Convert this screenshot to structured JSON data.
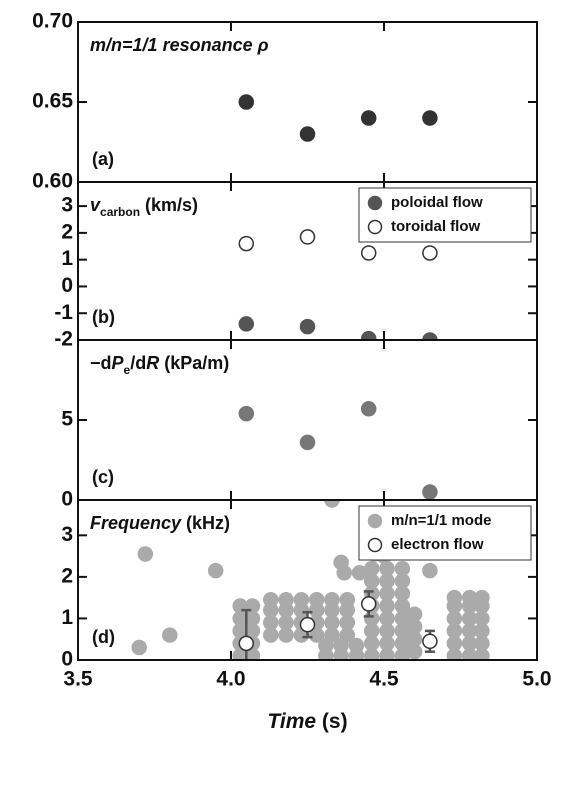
{
  "chart_data": [
    {
      "type": "scatter",
      "title": [
        {
          "text": "m",
          "italic": true
        },
        {
          "text": "/",
          "italic": true
        },
        {
          "text": "n",
          "italic": true
        },
        {
          "text": "=1/1 resonance ρ",
          "italic": true
        }
      ],
      "panel_label": "(a)",
      "xlim": [
        3.5,
        5.0
      ],
      "xticks": [
        3.5,
        4,
        4.5,
        5
      ],
      "ylim": [
        0.6,
        0.7
      ],
      "yticks": [
        {
          "value": 0.6,
          "label": "0.60"
        },
        {
          "value": 0.65,
          "label": "0.65"
        },
        {
          "value": 0.7,
          "label": "0.70"
        }
      ],
      "series": [
        {
          "color": "#333333",
          "edgecolor": "#333333",
          "x": [
            4.05,
            4.25,
            4.45,
            4.65
          ],
          "values": [
            0.65,
            0.63,
            0.64,
            0.64
          ]
        }
      ]
    },
    {
      "type": "scatter",
      "title": [
        {
          "text": "v",
          "italic": true
        },
        {
          "text": "carbon",
          "sub": true
        },
        {
          "text": " (km/s)"
        }
      ],
      "panel_label": "(b)",
      "xlim": [
        3.5,
        5.0
      ],
      "xticks": [
        3.5,
        4,
        4.5,
        5
      ],
      "ylim": [
        -2,
        3.9
      ],
      "yticks": [
        -2,
        -1,
        0,
        1,
        2,
        3
      ],
      "legend": "upper right",
      "series": [
        {
          "name": "poloidal flow",
          "color": "#555555",
          "edgecolor": "#555555",
          "x": [
            4.05,
            4.25,
            4.45,
            4.65
          ],
          "values": [
            -1.4,
            -1.5,
            -1.95,
            -2.0
          ]
        },
        {
          "name": "toroidal flow",
          "color": "#ffffff",
          "edgecolor": "#333333",
          "x": [
            4.05,
            4.25,
            4.45,
            4.65
          ],
          "values": [
            1.6,
            1.85,
            1.25,
            1.25
          ]
        }
      ]
    },
    {
      "type": "scatter",
      "title": [
        {
          "text": "−d"
        },
        {
          "text": "P",
          "italic": true
        },
        {
          "text": "e",
          "sub": true
        },
        {
          "text": "/d"
        },
        {
          "text": "R",
          "italic": true
        },
        {
          "text": " (kPa/m)"
        }
      ],
      "panel_label": "(c)",
      "xlim": [
        3.5,
        5.0
      ],
      "xticks": [
        3.5,
        4,
        4.5,
        5
      ],
      "ylim": [
        0,
        10
      ],
      "yticks": [
        0,
        5
      ],
      "series": [
        {
          "color": "#777777",
          "edgecolor": "#777777",
          "x": [
            4.05,
            4.25,
            4.45,
            4.65
          ],
          "values": [
            5.4,
            3.6,
            5.7,
            0.5
          ]
        }
      ]
    },
    {
      "type": "scatter",
      "title": [
        {
          "text": "Frequency",
          "italic": true
        },
        {
          "text": " (kHz)"
        }
      ],
      "panel_label": "(d)",
      "xlim": [
        3.5,
        5.0
      ],
      "xticks": [
        3.5,
        {
          "value": 4,
          "label": "4.0"
        },
        4.5,
        {
          "value": 5,
          "label": "5.0"
        }
      ],
      "xlabel": [
        {
          "text": "Time",
          "italic": true
        },
        {
          "text": " (s)"
        }
      ],
      "ylim": [
        0,
        3.85
      ],
      "yticks": [
        0,
        1,
        2,
        3
      ],
      "legend": "upper right",
      "series": [
        {
          "name": "m/n=1/1 mode",
          "color": "#aaaaaa",
          "edgecolor": "#aaaaaa",
          "x": [
            3.7,
            3.72,
            3.8,
            3.95,
            4.33,
            4.36,
            4.37,
            4.42,
            4.47,
            4.5,
            4.65,
            4.03,
            4.03,
            4.03,
            4.03,
            4.03,
            4.07,
            4.07,
            4.07,
            4.07,
            4.07,
            4.13,
            4.13,
            4.13,
            4.13,
            4.18,
            4.18,
            4.18,
            4.18,
            4.23,
            4.23,
            4.23,
            4.23,
            4.28,
            4.28,
            4.28,
            4.28,
            4.33,
            4.33,
            4.33,
            4.33,
            4.38,
            4.38,
            4.38,
            4.38,
            4.31,
            4.31,
            4.36,
            4.36,
            4.41,
            4.41,
            4.46,
            4.46,
            4.46,
            4.46,
            4.46,
            4.46,
            4.46,
            4.46,
            4.51,
            4.51,
            4.51,
            4.51,
            4.51,
            4.51,
            4.51,
            4.51,
            4.56,
            4.56,
            4.56,
            4.56,
            4.56,
            4.56,
            4.56,
            4.56,
            4.6,
            4.6,
            4.6,
            4.6,
            4.73,
            4.73,
            4.73,
            4.73,
            4.73,
            4.73,
            4.78,
            4.78,
            4.78,
            4.78,
            4.78,
            4.78,
            4.82,
            4.82,
            4.82,
            4.82,
            4.82,
            4.82
          ],
          "values": [
            0.3,
            2.55,
            0.6,
            2.15,
            3.85,
            2.35,
            2.1,
            2.1,
            2.55,
            2.5,
            2.15,
            0.1,
            0.4,
            0.7,
            1.0,
            1.3,
            0.1,
            0.4,
            0.7,
            1.0,
            1.3,
            0.6,
            0.9,
            1.2,
            1.45,
            0.6,
            0.9,
            1.2,
            1.45,
            0.6,
            0.9,
            1.2,
            1.45,
            0.6,
            0.9,
            1.2,
            1.45,
            0.6,
            0.9,
            1.2,
            1.45,
            0.6,
            0.9,
            1.2,
            1.45,
            0.1,
            0.35,
            0.1,
            0.35,
            0.1,
            0.35,
            0.1,
            0.4,
            0.7,
            1.0,
            1.3,
            1.6,
            1.9,
            2.2,
            0.1,
            0.4,
            0.7,
            1.0,
            1.3,
            1.6,
            1.9,
            2.2,
            0.1,
            0.4,
            0.7,
            1.0,
            1.3,
            1.6,
            1.9,
            2.2,
            0.2,
            0.5,
            0.8,
            1.1,
            0.1,
            0.4,
            0.7,
            1.0,
            1.3,
            1.5,
            0.1,
            0.4,
            0.7,
            1.0,
            1.3,
            1.5,
            0.1,
            0.4,
            0.7,
            1.0,
            1.3,
            1.5
          ]
        },
        {
          "name": "electron flow",
          "color": "#ffffff",
          "edgecolor": "#333333",
          "errorcolor": "#555555",
          "x": [
            4.05,
            4.25,
            4.45,
            4.65
          ],
          "values": [
            0.4,
            0.85,
            1.35,
            0.45
          ],
          "errors": [
            0.8,
            0.3,
            0.3,
            0.25
          ]
        }
      ]
    }
  ]
}
